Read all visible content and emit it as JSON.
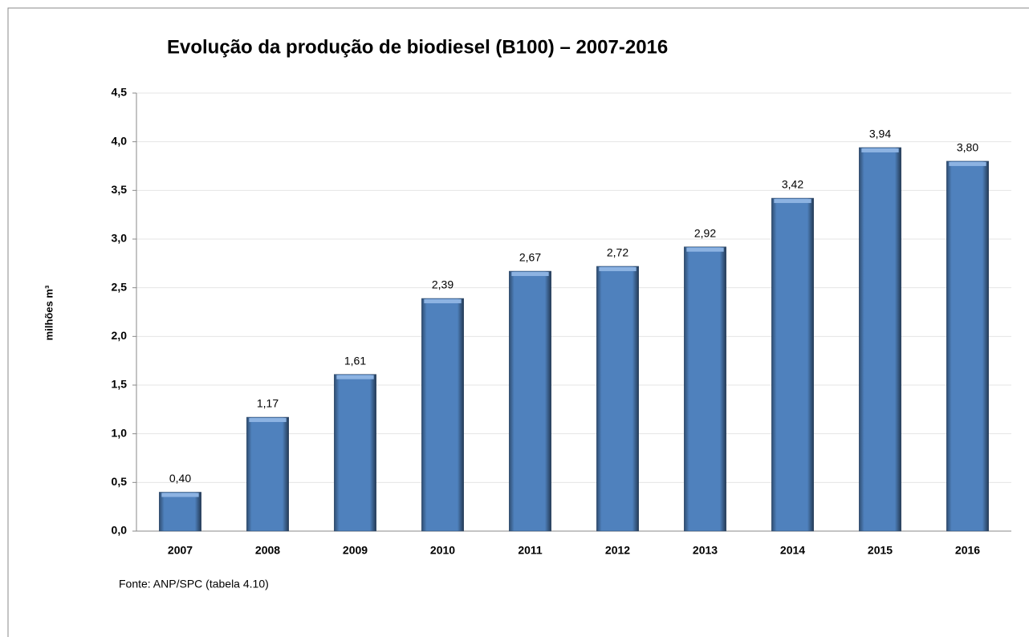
{
  "chart_data": {
    "type": "bar",
    "title": "Evolução da produção de biodiesel (B100) – 2007-2016",
    "y_label": "milhões m³",
    "source": "Fonte: ANP/SPC (tabela 4.10)",
    "categories": [
      "2007",
      "2008",
      "2009",
      "2010",
      "2011",
      "2012",
      "2013",
      "2014",
      "2015",
      "2016"
    ],
    "values": [
      0.4,
      1.17,
      1.61,
      2.39,
      2.67,
      2.72,
      2.92,
      3.42,
      3.94,
      3.8
    ],
    "value_labels": [
      "0,40",
      "1,17",
      "1,61",
      "2,39",
      "2,67",
      "2,72",
      "2,92",
      "3,42",
      "3,94",
      "3,80"
    ],
    "color": "#4f81bd",
    "ylim": [
      0,
      4.5
    ],
    "yticks": [
      {
        "value": 0,
        "label": "0,0"
      },
      {
        "value": 0.5,
        "label": "0,5"
      },
      {
        "value": 1.0,
        "label": "1,0"
      },
      {
        "value": 1.5,
        "label": "1,5"
      },
      {
        "value": 2.0,
        "label": "2,0"
      },
      {
        "value": 2.5,
        "label": "2,5"
      },
      {
        "value": 3.0,
        "label": "3,0"
      },
      {
        "value": 3.5,
        "label": "3,5"
      },
      {
        "value": 4.0,
        "label": "4,0"
      },
      {
        "value": 4.5,
        "label": "4,5"
      }
    ],
    "grid": true
  }
}
